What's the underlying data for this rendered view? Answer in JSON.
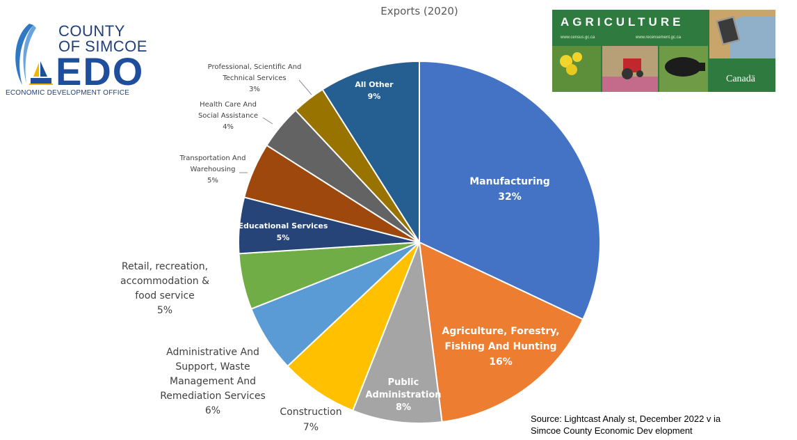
{
  "chart_data": {
    "type": "pie",
    "title": "Exports (2020)",
    "slices": [
      {
        "label": "Manufacturing",
        "value": 32,
        "value_label": "32%",
        "color": "#4472c4",
        "label_pos": "inside"
      },
      {
        "label": "Agriculture, Forestry, Fishing And Hunting",
        "value": 16,
        "value_label": "16%",
        "color": "#ed7d31",
        "label_pos": "inside"
      },
      {
        "label": "Public Administration",
        "value": 8,
        "value_label": "8%",
        "color": "#a5a5a5",
        "label_pos": "inside"
      },
      {
        "label": "Construction",
        "value": 7,
        "value_label": "7%",
        "color": "#ffc000",
        "label_pos": "outside"
      },
      {
        "label": "Administrative And Support, Waste Management And Remediation Services",
        "value": 6,
        "value_label": "6%",
        "color": "#5b9bd5",
        "label_pos": "outside"
      },
      {
        "label": "Retail, recreation, accommodation & food service",
        "value": 5,
        "value_label": "5%",
        "color": "#70ad47",
        "label_pos": "outside"
      },
      {
        "label": "Educational Services",
        "value": 5,
        "value_label": "5%",
        "color": "#264478",
        "label_pos": "inside"
      },
      {
        "label": "Transportation And Warehousing",
        "value": 5,
        "value_label": "5%",
        "color": "#9e480e",
        "label_pos": "outside"
      },
      {
        "label": "Health Care And Social Assistance",
        "value": 4,
        "value_label": "4%",
        "color": "#636363",
        "label_pos": "outside"
      },
      {
        "label": "Professional, Scientific And Technical Services",
        "value": 3,
        "value_label": "3%",
        "color": "#997300",
        "label_pos": "outside"
      },
      {
        "label": "All Other",
        "value": 9,
        "value_label": "9%",
        "color": "#255e91",
        "label_pos": "inside"
      }
    ]
  },
  "logos": {
    "county_line1": "COUNTY",
    "county_line2": "OF SIMCOE",
    "edo": "EDO",
    "edo_subtitle": "ECONOMIC DEVELOPMENT OFFICE",
    "agri_title": "AGRICULTURE",
    "agri_url_en": "www.census.gc.ca",
    "agri_url_fr": "www.recensement.gc.ca",
    "agri_country": "Canadä"
  },
  "source": {
    "line1": "Source: Lightcast Analy st,  December 2022 v ia",
    "line2": "Simcoe County  Economic Dev elopment"
  }
}
